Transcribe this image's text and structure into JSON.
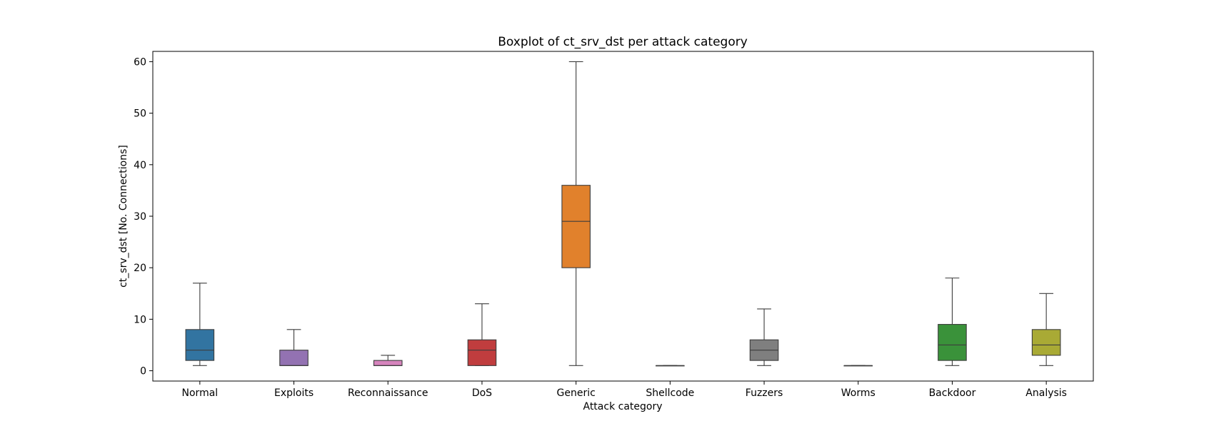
{
  "chart_data": {
    "type": "boxplot",
    "title": "Boxplot of ct_srv_dst per attack category",
    "xlabel": "Attack category",
    "ylabel": "ct_srv_dst [No. Connections]",
    "ylim": [
      -2,
      62
    ],
    "yticks": [
      0,
      10,
      20,
      30,
      40,
      50,
      60
    ],
    "grid": false,
    "categories": [
      "Normal",
      "Exploits",
      "Reconnaissance",
      "DoS",
      "Generic",
      "Shellcode",
      "Fuzzers",
      "Worms",
      "Backdoor",
      "Analysis"
    ],
    "boxes": [
      {
        "category": "Normal",
        "whisker_low": 1,
        "q1": 2,
        "median": 4,
        "q3": 8,
        "whisker_high": 17,
        "color": "#3274a1"
      },
      {
        "category": "Exploits",
        "whisker_low": 1,
        "q1": 1,
        "median": 1,
        "q3": 4,
        "whisker_high": 8,
        "color": "#9372b2"
      },
      {
        "category": "Reconnaissance",
        "whisker_low": 1,
        "q1": 1,
        "median": 1,
        "q3": 2,
        "whisker_high": 3,
        "color": "#d684bd"
      },
      {
        "category": "DoS",
        "whisker_low": 1,
        "q1": 1,
        "median": 4,
        "q3": 6,
        "whisker_high": 13,
        "color": "#c03d3e"
      },
      {
        "category": "Generic",
        "whisker_low": 1,
        "q1": 20,
        "median": 29,
        "q3": 36,
        "whisker_high": 60,
        "color": "#e1812c"
      },
      {
        "category": "Shellcode",
        "whisker_low": 1,
        "q1": 1,
        "median": 1,
        "q3": 1,
        "whisker_high": 1,
        "color": "#8c613c"
      },
      {
        "category": "Fuzzers",
        "whisker_low": 1,
        "q1": 2,
        "median": 4,
        "q3": 6,
        "whisker_high": 12,
        "color": "#7f7f7f"
      },
      {
        "category": "Worms",
        "whisker_low": 1,
        "q1": 1,
        "median": 1,
        "q3": 1,
        "whisker_high": 1,
        "color": "#17becf"
      },
      {
        "category": "Backdoor",
        "whisker_low": 1,
        "q1": 2,
        "median": 5,
        "q3": 9,
        "whisker_high": 18,
        "color": "#3a923a"
      },
      {
        "category": "Analysis",
        "whisker_low": 1,
        "q1": 3,
        "median": 5,
        "q3": 8,
        "whisker_high": 15,
        "color": "#a9aa35"
      }
    ]
  }
}
